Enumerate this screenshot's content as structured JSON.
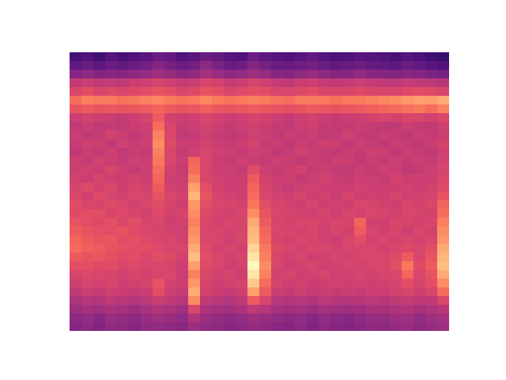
{
  "chart_data": {
    "type": "heatmap",
    "tick_labels": false,
    "zlim": [
      0,
      95
    ],
    "cells": [
      [
        22,
        24,
        20,
        25,
        22,
        24,
        26,
        30,
        28,
        24,
        26,
        30,
        28,
        25,
        24,
        30,
        27,
        25,
        24,
        26,
        28,
        25,
        23,
        24,
        26,
        25,
        24,
        22,
        25,
        23,
        20,
        18
      ],
      [
        28,
        30,
        27,
        30,
        28,
        30,
        32,
        36,
        33,
        30,
        32,
        38,
        34,
        30,
        31,
        36,
        33,
        30,
        29,
        31,
        32,
        30,
        28,
        30,
        31,
        29,
        28,
        27,
        30,
        28,
        26,
        24
      ],
      [
        36,
        38,
        35,
        37,
        36,
        38,
        40,
        42,
        40,
        37,
        39,
        44,
        41,
        38,
        39,
        42,
        40,
        37,
        36,
        38,
        40,
        38,
        36,
        37,
        39,
        37,
        36,
        35,
        37,
        36,
        34,
        32
      ],
      [
        50,
        52,
        50,
        51,
        50,
        52,
        53,
        55,
        53,
        51,
        52,
        56,
        54,
        51,
        52,
        55,
        53,
        51,
        50,
        52,
        53,
        51,
        50,
        51,
        52,
        51,
        50,
        49,
        51,
        50,
        49,
        48
      ],
      [
        56,
        58,
        55,
        57,
        56,
        57,
        58,
        60,
        58,
        56,
        57,
        60,
        58,
        56,
        57,
        59,
        58,
        56,
        55,
        57,
        58,
        56,
        55,
        56,
        57,
        56,
        55,
        55,
        57,
        58,
        57,
        56
      ],
      [
        66,
        70,
        68,
        69,
        67,
        68,
        70,
        71,
        69,
        67,
        68,
        71,
        69,
        67,
        68,
        70,
        69,
        67,
        66,
        68,
        69,
        68,
        67,
        68,
        69,
        70,
        71,
        72,
        74,
        76,
        75,
        78
      ],
      [
        60,
        62,
        60,
        61,
        60,
        61,
        62,
        64,
        62,
        60,
        61,
        63,
        61,
        60,
        61,
        62,
        61,
        60,
        59,
        60,
        62,
        61,
        60,
        61,
        62,
        63,
        64,
        65,
        67,
        68,
        66,
        70
      ],
      [
        52,
        54,
        53,
        52,
        51,
        53,
        55,
        62,
        54,
        52,
        53,
        56,
        54,
        52,
        53,
        55,
        54,
        52,
        51,
        53,
        54,
        52,
        51,
        52,
        53,
        54,
        55,
        54,
        56,
        55,
        54,
        56
      ],
      [
        50,
        52,
        50,
        51,
        50,
        52,
        53,
        66,
        55,
        51,
        52,
        54,
        52,
        51,
        52,
        54,
        52,
        51,
        50,
        52,
        53,
        51,
        50,
        51,
        52,
        51,
        50,
        50,
        52,
        51,
        50,
        53
      ],
      [
        52,
        50,
        51,
        54,
        52,
        50,
        52,
        70,
        56,
        50,
        51,
        53,
        51,
        50,
        51,
        53,
        52,
        50,
        52,
        51,
        52,
        50,
        51,
        53,
        51,
        50,
        52,
        51,
        50,
        52,
        51,
        52
      ],
      [
        51,
        53,
        52,
        50,
        53,
        51,
        53,
        72,
        57,
        52,
        52,
        54,
        52,
        51,
        52,
        54,
        51,
        52,
        50,
        52,
        51,
        53,
        52,
        50,
        52,
        51,
        50,
        52,
        51,
        50,
        52,
        54
      ],
      [
        50,
        52,
        51,
        53,
        50,
        52,
        51,
        70,
        56,
        51,
        53,
        55,
        53,
        52,
        51,
        53,
        52,
        50,
        51,
        53,
        52,
        51,
        50,
        52,
        51,
        53,
        52,
        50,
        52,
        51,
        50,
        53
      ],
      [
        53,
        51,
        54,
        52,
        51,
        53,
        52,
        68,
        55,
        52,
        64,
        56,
        52,
        51,
        53,
        52,
        51,
        53,
        52,
        50,
        52,
        51,
        53,
        52,
        50,
        52,
        51,
        53,
        51,
        52,
        51,
        54
      ],
      [
        52,
        54,
        52,
        55,
        53,
        51,
        53,
        66,
        54,
        51,
        66,
        55,
        53,
        52,
        51,
        58,
        53,
        51,
        52,
        54,
        51,
        52,
        51,
        50,
        52,
        51,
        53,
        52,
        50,
        51,
        53,
        55
      ],
      [
        54,
        52,
        55,
        53,
        52,
        54,
        52,
        64,
        53,
        52,
        70,
        56,
        54,
        53,
        52,
        62,
        54,
        52,
        53,
        51,
        52,
        54,
        52,
        51,
        53,
        52,
        51,
        54,
        52,
        53,
        52,
        56
      ],
      [
        55,
        57,
        54,
        56,
        53,
        55,
        54,
        62,
        54,
        53,
        76,
        58,
        54,
        52,
        53,
        64,
        55,
        53,
        51,
        53,
        54,
        52,
        53,
        52,
        54,
        53,
        52,
        53,
        54,
        52,
        54,
        57
      ],
      [
        56,
        54,
        57,
        55,
        54,
        56,
        55,
        60,
        56,
        54,
        80,
        60,
        55,
        54,
        53,
        66,
        56,
        54,
        53,
        55,
        53,
        54,
        52,
        55,
        53,
        54,
        53,
        55,
        53,
        54,
        55,
        60
      ],
      [
        58,
        56,
        55,
        57,
        56,
        54,
        56,
        58,
        55,
        53,
        74,
        58,
        56,
        55,
        54,
        68,
        58,
        55,
        54,
        53,
        55,
        53,
        54,
        53,
        56,
        55,
        54,
        53,
        55,
        54,
        56,
        64
      ],
      [
        57,
        59,
        58,
        56,
        57,
        55,
        54,
        57,
        54,
        55,
        72,
        57,
        55,
        54,
        56,
        72,
        60,
        56,
        55,
        54,
        53,
        55,
        53,
        56,
        54,
        56,
        55,
        54,
        56,
        55,
        54,
        66
      ],
      [
        60,
        58,
        57,
        59,
        56,
        58,
        55,
        56,
        53,
        54,
        70,
        56,
        54,
        56,
        55,
        78,
        62,
        55,
        54,
        56,
        55,
        54,
        56,
        55,
        64,
        54,
        53,
        56,
        55,
        54,
        56,
        70
      ],
      [
        62,
        60,
        59,
        58,
        60,
        57,
        56,
        55,
        54,
        53,
        72,
        55,
        56,
        54,
        55,
        80,
        64,
        56,
        55,
        54,
        56,
        53,
        55,
        54,
        62,
        55,
        54,
        55,
        53,
        56,
        54,
        72
      ],
      [
        64,
        62,
        60,
        61,
        58,
        59,
        57,
        56,
        55,
        54,
        74,
        56,
        55,
        53,
        56,
        82,
        66,
        55,
        54,
        56,
        55,
        54,
        53,
        56,
        58,
        54,
        56,
        54,
        55,
        54,
        56,
        74
      ],
      [
        66,
        63,
        62,
        60,
        59,
        58,
        58,
        57,
        56,
        55,
        78,
        57,
        54,
        55,
        54,
        86,
        68,
        57,
        55,
        54,
        56,
        55,
        54,
        55,
        56,
        55,
        54,
        56,
        57,
        55,
        58,
        78
      ],
      [
        62,
        60,
        61,
        59,
        57,
        58,
        56,
        58,
        57,
        54,
        82,
        58,
        56,
        54,
        55,
        90,
        70,
        56,
        54,
        55,
        53,
        54,
        55,
        54,
        55,
        56,
        55,
        57,
        62,
        56,
        60,
        80
      ],
      [
        58,
        59,
        57,
        58,
        56,
        57,
        55,
        56,
        55,
        53,
        76,
        57,
        55,
        53,
        54,
        94,
        72,
        55,
        53,
        54,
        55,
        53,
        54,
        55,
        54,
        55,
        56,
        58,
        68,
        57,
        62,
        82
      ],
      [
        55,
        57,
        56,
        55,
        54,
        56,
        54,
        55,
        56,
        52,
        70,
        56,
        54,
        55,
        53,
        90,
        70,
        54,
        55,
        53,
        54,
        55,
        53,
        54,
        55,
        54,
        55,
        56,
        64,
        56,
        60,
        78
      ],
      [
        53,
        55,
        54,
        56,
        53,
        54,
        55,
        60,
        54,
        53,
        74,
        55,
        53,
        54,
        55,
        84,
        66,
        55,
        53,
        54,
        52,
        53,
        54,
        53,
        54,
        53,
        54,
        55,
        58,
        55,
        58,
        72
      ],
      [
        50,
        52,
        51,
        53,
        52,
        51,
        52,
        58,
        53,
        51,
        78,
        54,
        52,
        51,
        53,
        76,
        62,
        52,
        51,
        53,
        51,
        52,
        51,
        52,
        51,
        53,
        52,
        54,
        55,
        53,
        55,
        66
      ],
      [
        46,
        48,
        47,
        49,
        48,
        47,
        49,
        52,
        50,
        48,
        72,
        50,
        48,
        47,
        49,
        62,
        55,
        48,
        47,
        48,
        47,
        49,
        48,
        47,
        48,
        49,
        48,
        50,
        51,
        49,
        50,
        56
      ],
      [
        42,
        44,
        43,
        45,
        44,
        42,
        45,
        47,
        45,
        43,
        56,
        46,
        44,
        43,
        45,
        50,
        48,
        44,
        43,
        44,
        42,
        44,
        43,
        42,
        43,
        45,
        44,
        46,
        47,
        44,
        46,
        48
      ],
      [
        38,
        40,
        37,
        41,
        40,
        38,
        41,
        43,
        41,
        39,
        46,
        42,
        40,
        38,
        40,
        42,
        41,
        40,
        38,
        40,
        37,
        40,
        38,
        37,
        39,
        41,
        40,
        42,
        43,
        40,
        42,
        44
      ],
      [
        36,
        38,
        35,
        39,
        38,
        36,
        39,
        40,
        38,
        37,
        42,
        40,
        38,
        36,
        38,
        40,
        39,
        37,
        36,
        38,
        35,
        38,
        36,
        35,
        37,
        39,
        38,
        40,
        41,
        38,
        40,
        42
      ]
    ]
  }
}
